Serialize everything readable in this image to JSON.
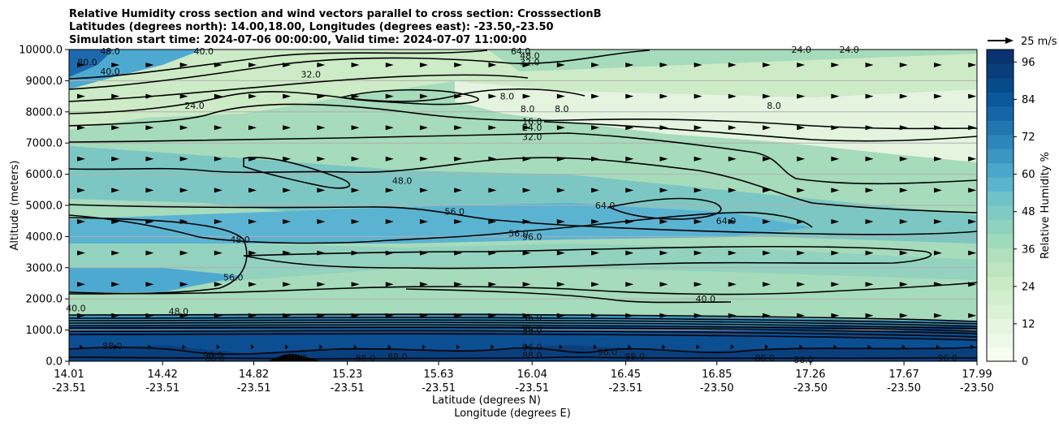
{
  "chart_data": {
    "type": "heatmap",
    "title_lines": [
      "Relative Humidity cross section and wind vectors parallel to cross section: CrosssectionB",
      "Latitudes (degrees north): 14.00,18.00, Longitudes (degrees east): -23.50,-23.50",
      "Simulation start time: 2024-07-06 00:00:00, Valid time: 2024-07-07 11:00:00"
    ],
    "ylabel": "Altitude (meters)",
    "xlabel_lat": "Latitude (degrees N)",
    "xlabel_lon": "Longitude (degrees E)",
    "ylim": [
      0,
      10000
    ],
    "y_ticks": [
      "0.0",
      "1000.0",
      "2000.0",
      "3000.0",
      "4000.0",
      "5000.0",
      "6000.0",
      "7000.0",
      "8000.0",
      "9000.0",
      "10000.0"
    ],
    "x_ticks": [
      {
        "lat": "14.01",
        "lon": "-23.51"
      },
      {
        "lat": "14.42",
        "lon": "-23.51"
      },
      {
        "lat": "14.82",
        "lon": "-23.51"
      },
      {
        "lat": "15.23",
        "lon": "-23.51"
      },
      {
        "lat": "15.63",
        "lon": "-23.51"
      },
      {
        "lat": "16.04",
        "lon": "-23.51"
      },
      {
        "lat": "16.45",
        "lon": "-23.51"
      },
      {
        "lat": "16.85",
        "lon": "-23.50"
      },
      {
        "lat": "17.26",
        "lon": "-23.50"
      },
      {
        "lat": "17.67",
        "lon": "-23.50"
      },
      {
        "lat": "17.99",
        "lon": "-23.50"
      }
    ],
    "colorbar": {
      "label": "Relative Humidity %",
      "range": [
        0,
        100
      ],
      "ticks": [
        "0",
        "12",
        "24",
        "36",
        "48",
        "60",
        "72",
        "84",
        "96"
      ],
      "colormap": "GnBu"
    },
    "wind_reference": "25 m/s",
    "grid": true,
    "contour_line_color": "#000000",
    "contour_labels": [
      {
        "text": "80.0",
        "x": 14.09,
        "y": 9600
      },
      {
        "text": "48.0",
        "x": 14.19,
        "y": 9950
      },
      {
        "text": "40.0",
        "x": 14.19,
        "y": 9300
      },
      {
        "text": "40.0",
        "x": 14.6,
        "y": 9950
      },
      {
        "text": "32.0",
        "x": 15.07,
        "y": 9200
      },
      {
        "text": "24.0",
        "x": 14.56,
        "y": 8200
      },
      {
        "text": "64.0",
        "x": 15.99,
        "y": 9950
      },
      {
        "text": "48.0",
        "x": 16.03,
        "y": 9800
      },
      {
        "text": "32.0",
        "x": 16.03,
        "y": 9600
      },
      {
        "text": "8.0",
        "x": 15.93,
        "y": 8500
      },
      {
        "text": "8.0",
        "x": 16.02,
        "y": 8100
      },
      {
        "text": "8.0",
        "x": 16.17,
        "y": 8100
      },
      {
        "text": "8.0",
        "x": 17.1,
        "y": 8200
      },
      {
        "text": "16.0",
        "x": 16.04,
        "y": 7700
      },
      {
        "text": "24.0",
        "x": 16.04,
        "y": 7500
      },
      {
        "text": "32.0",
        "x": 16.04,
        "y": 7200
      },
      {
        "text": "48.0",
        "x": 15.47,
        "y": 5800
      },
      {
        "text": "56.0",
        "x": 15.7,
        "y": 4800
      },
      {
        "text": "56.0",
        "x": 15.98,
        "y": 4100
      },
      {
        "text": "96.0",
        "x": 16.04,
        "y": 4000
      },
      {
        "text": "64.0",
        "x": 16.36,
        "y": 5000
      },
      {
        "text": "64.0",
        "x": 16.89,
        "y": 4500
      },
      {
        "text": "48.0",
        "x": 14.76,
        "y": 3900
      },
      {
        "text": "56.0",
        "x": 14.73,
        "y": 2700
      },
      {
        "text": "40.0",
        "x": 16.8,
        "y": 2000
      },
      {
        "text": "40.0",
        "x": 14.04,
        "y": 1700
      },
      {
        "text": "48.0",
        "x": 14.49,
        "y": 1600
      },
      {
        "text": "56.0",
        "x": 16.04,
        "y": 1400
      },
      {
        "text": "88.0",
        "x": 16.04,
        "y": 1000
      },
      {
        "text": "96.0",
        "x": 16.04,
        "y": 1050
      },
      {
        "text": "96.0",
        "x": 16.04,
        "y": 450
      },
      {
        "text": "88.0",
        "x": 16.04,
        "y": 200
      },
      {
        "text": "88.0",
        "x": 14.2,
        "y": 500
      },
      {
        "text": "96.0",
        "x": 14.64,
        "y": 200
      },
      {
        "text": "88.0",
        "x": 14.65,
        "y": 100
      },
      {
        "text": "88.0",
        "x": 15.01,
        "y": 100
      },
      {
        "text": "88.0",
        "x": 15.31,
        "y": 100
      },
      {
        "text": "88.0",
        "x": 15.45,
        "y": 150
      },
      {
        "text": "96.0",
        "x": 16.37,
        "y": 300
      },
      {
        "text": "88.0",
        "x": 16.49,
        "y": 150
      },
      {
        "text": "88.0",
        "x": 17.06,
        "y": 100
      },
      {
        "text": "88.0",
        "x": 17.23,
        "y": 50
      },
      {
        "text": "96.0",
        "x": 17.86,
        "y": 100
      },
      {
        "text": "24.0",
        "x": 17.22,
        "y": 10000
      },
      {
        "text": "24.0",
        "x": 17.43,
        "y": 10000
      }
    ]
  }
}
